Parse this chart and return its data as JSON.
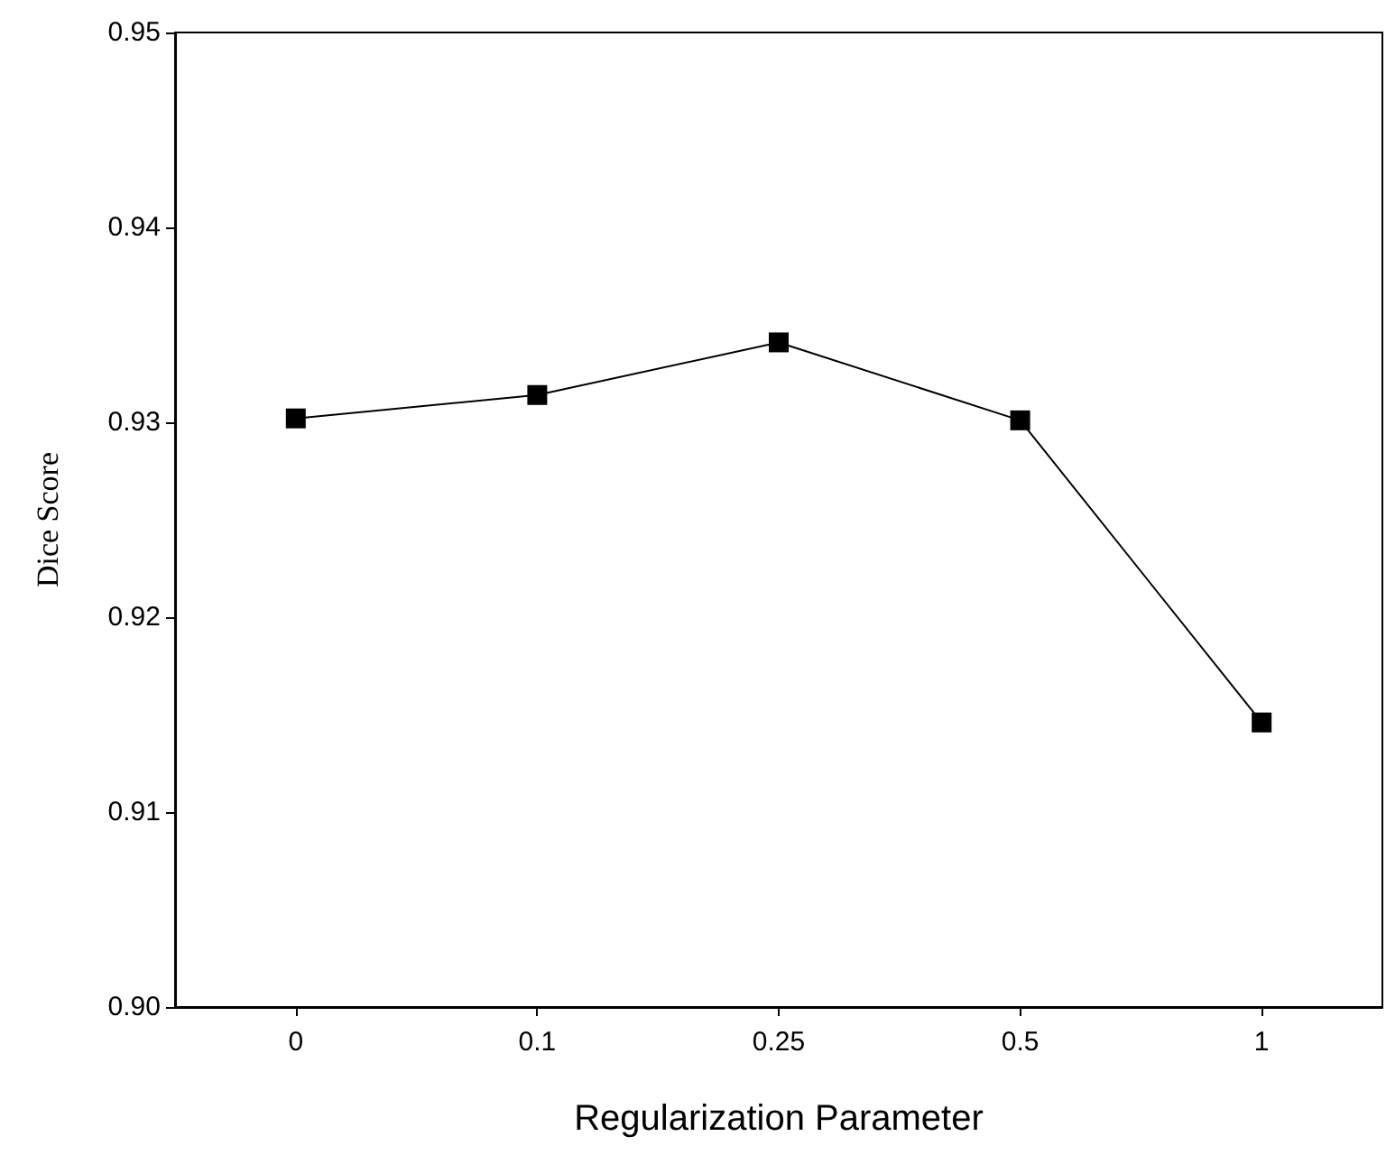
{
  "chart_data": {
    "type": "line",
    "xlabel": "Regularization Parameter",
    "ylabel": "Dice Score",
    "categories": [
      "0",
      "0.1",
      "0.25",
      "0.5",
      "1"
    ],
    "series": [
      {
        "color": "#000000",
        "values": [
          0.9302,
          0.9314,
          0.9341,
          0.9301,
          0.9146
        ]
      }
    ],
    "ylim": [
      0.9,
      0.95
    ],
    "yticks": [
      {
        "value": 0.9,
        "label": "0.90"
      },
      {
        "value": 0.91,
        "label": "0.91"
      },
      {
        "value": 0.92,
        "label": "0.92"
      },
      {
        "value": 0.93,
        "label": "0.93"
      },
      {
        "value": 0.94,
        "label": "0.94"
      },
      {
        "value": 0.95,
        "label": "0.95"
      }
    ],
    "grid": false,
    "marker": "square",
    "line_style": "solid"
  }
}
